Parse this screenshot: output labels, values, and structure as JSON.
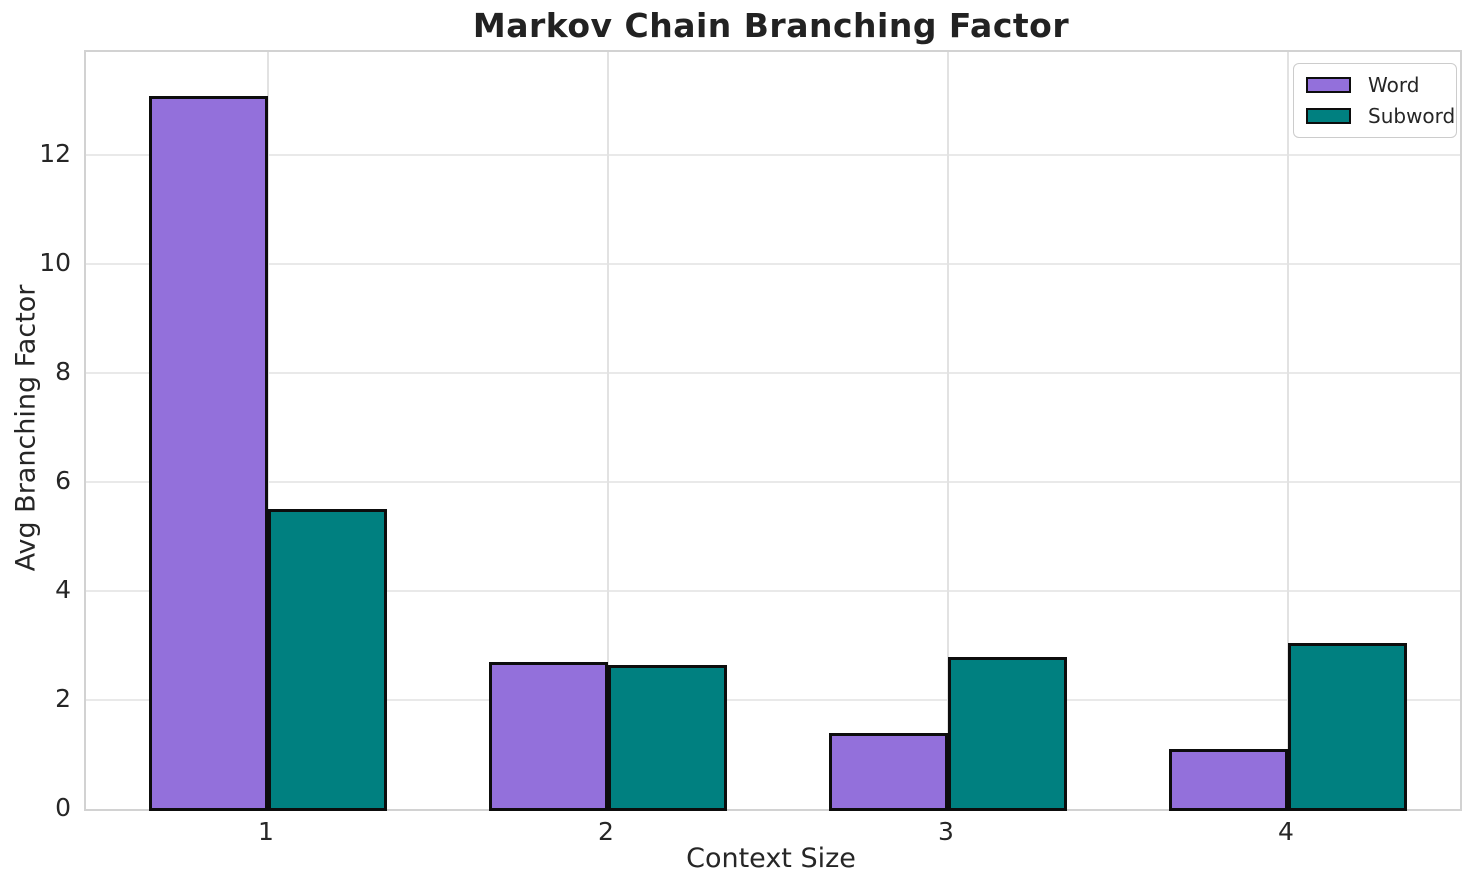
{
  "chart_data": {
    "type": "bar",
    "title": "Markov Chain Branching Factor",
    "xlabel": "Context Size",
    "ylabel": "Avg Branching Factor",
    "categories": [
      "1",
      "2",
      "3",
      "4"
    ],
    "series": [
      {
        "name": "Word",
        "color": "#9370DB",
        "values": [
          13.1,
          2.7,
          1.4,
          1.1
        ]
      },
      {
        "name": "Subword",
        "color": "#008080",
        "values": [
          5.5,
          2.65,
          2.8,
          3.05
        ]
      }
    ],
    "yticks": [
      0,
      2,
      4,
      6,
      8,
      10,
      12
    ],
    "ylim": [
      0,
      13.9
    ],
    "grid": true,
    "grid_color": "#e6e6e6",
    "bar_edge_color": "#0d0d0d",
    "legend_position": "upper right",
    "legend_labels": [
      "Word",
      "Subword"
    ],
    "colors": {
      "word": "#9370DB",
      "subword": "#008080",
      "text": "#262626",
      "frame": "#d2d2d2"
    }
  }
}
